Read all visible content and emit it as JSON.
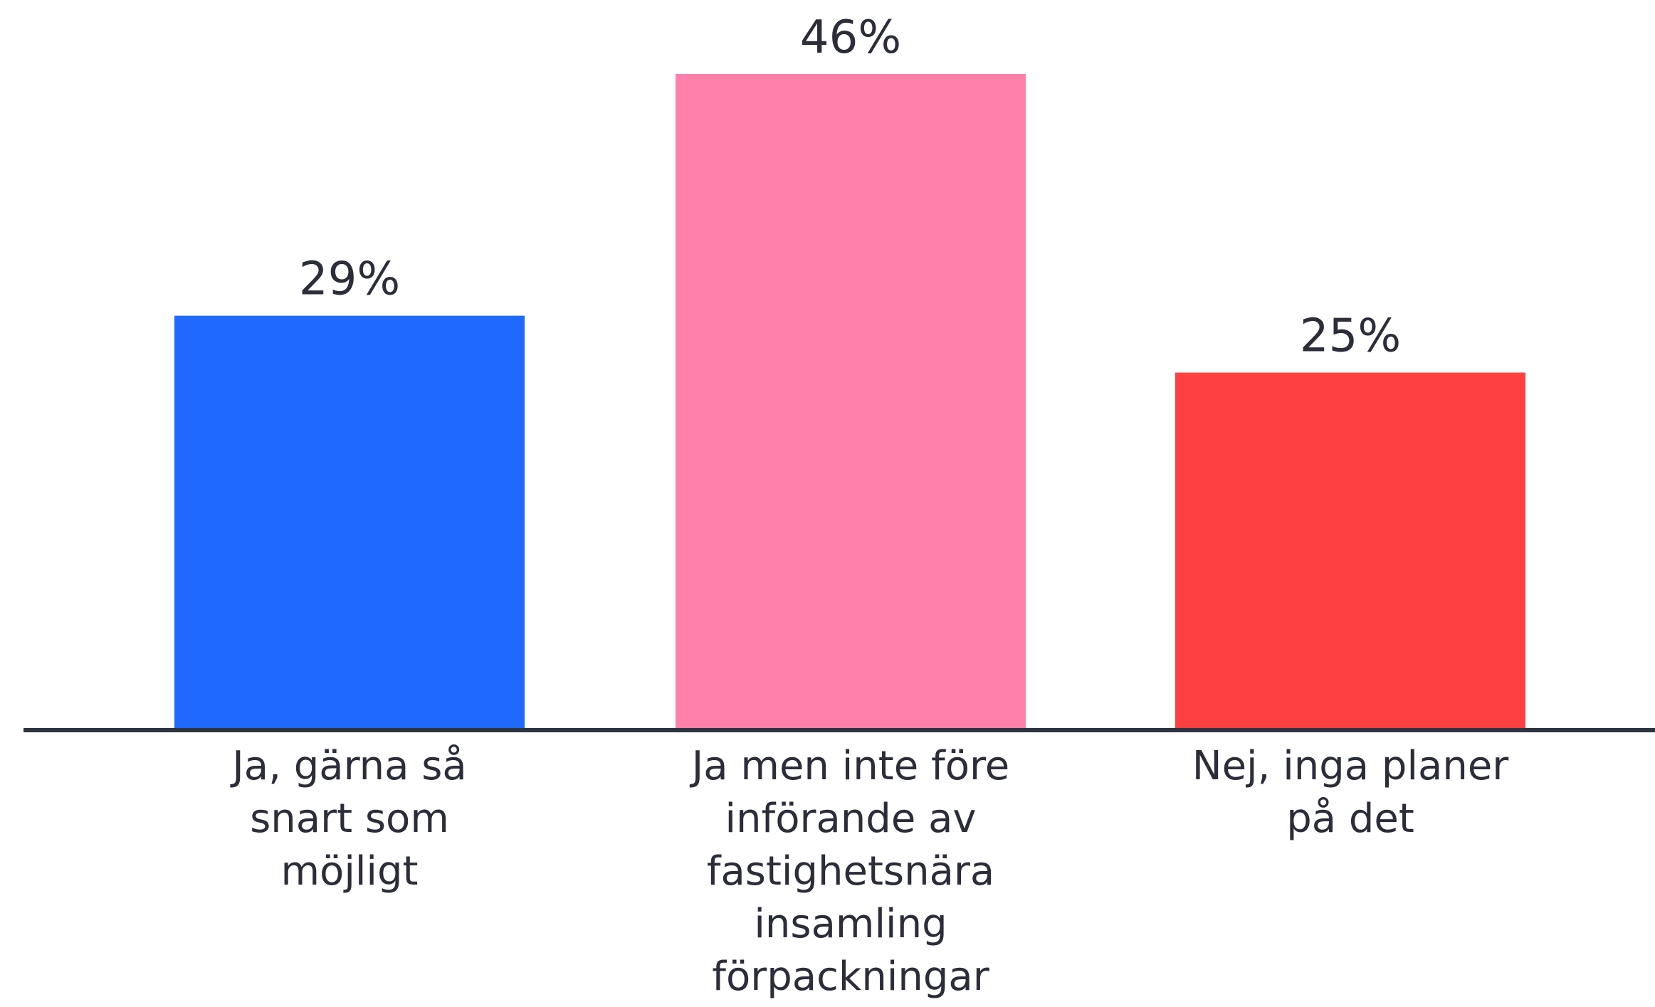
{
  "chart_data": {
    "type": "bar",
    "categories": [
      "Ja, gärna så snart som möjligt",
      "Ja men inte före införande av fastighetsnära insamling förpackningar",
      "Nej, inga planer på det"
    ],
    "values": [
      29,
      46,
      25
    ],
    "value_labels": [
      "29%",
      "46%",
      "25%"
    ],
    "colors": [
      "#1f69ff",
      "#ff80aa",
      "#ff4040"
    ]
  }
}
